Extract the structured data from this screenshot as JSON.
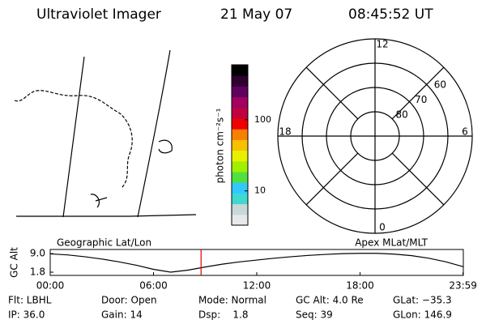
{
  "header": {
    "instrument": "Ultraviolet Imager",
    "date": "21 May 07",
    "time": "08:45:52 UT"
  },
  "colorbar": {
    "label": "photon cm⁻²s⁻¹",
    "log": true,
    "lim": [
      3.3,
      590
    ],
    "ticks": [
      10,
      100
    ],
    "colors": [
      "#e8e8e8",
      "#c8d8d8",
      "#40d8d0",
      "#30c8ff",
      "#50e040",
      "#a0f000",
      "#e8f000",
      "#f8c000",
      "#f88000",
      "#f00000",
      "#c00040",
      "#a00060",
      "#600060",
      "#300030",
      "#000000"
    ]
  },
  "polar": {
    "lat_lim": [
      50,
      90
    ],
    "lat_rings": [
      60,
      70,
      80
    ],
    "mlt_labels": [
      12,
      18,
      6,
      0
    ]
  },
  "timeline": {
    "type": "line",
    "left_label": "Geographic Lat/Lon",
    "right_label": "Apex MLat/MLT",
    "ylabel": "GC Alt",
    "x": [
      0,
      1,
      2,
      3,
      4,
      5,
      6,
      7,
      8,
      9,
      10,
      11,
      12,
      13,
      14,
      15,
      16,
      17,
      18,
      19,
      20,
      21,
      22,
      23,
      24
    ],
    "values": [
      8.9,
      8.5,
      7.8,
      6.9,
      5.8,
      4.5,
      2.9,
      1.8,
      2.6,
      3.8,
      4.9,
      5.8,
      6.5,
      7.2,
      7.8,
      8.3,
      8.7,
      9.0,
      9.1,
      9.1,
      8.8,
      8.2,
      7.2,
      5.8,
      3.9
    ],
    "color": "#000000",
    "xlim": [
      0,
      24
    ],
    "ylim": [
      0.55,
      10.6
    ],
    "xticks": [
      {
        "value": 0,
        "label": "00:00"
      },
      {
        "value": 6,
        "label": "06:00"
      },
      {
        "value": 12,
        "label": "12:00"
      },
      {
        "value": 18,
        "label": "18:00"
      },
      {
        "value": 23.983,
        "label": "23:59"
      }
    ],
    "yticks": [
      {
        "value": 9.0,
        "label": "9.0"
      },
      {
        "value": 1.8,
        "label": "1.8"
      }
    ],
    "current_time": 8.764,
    "current_color": "#e00000"
  },
  "info": [
    [
      "Flt: LBHL",
      "Door: Open",
      "Mode: Normal",
      "GC Alt: 4.0 Re",
      "GLat: −35.3"
    ],
    [
      "IP: 36.0",
      "Gain: 14",
      "Dsp:    1.8",
      "Seq: 39",
      "GLon: 146.9"
    ]
  ]
}
